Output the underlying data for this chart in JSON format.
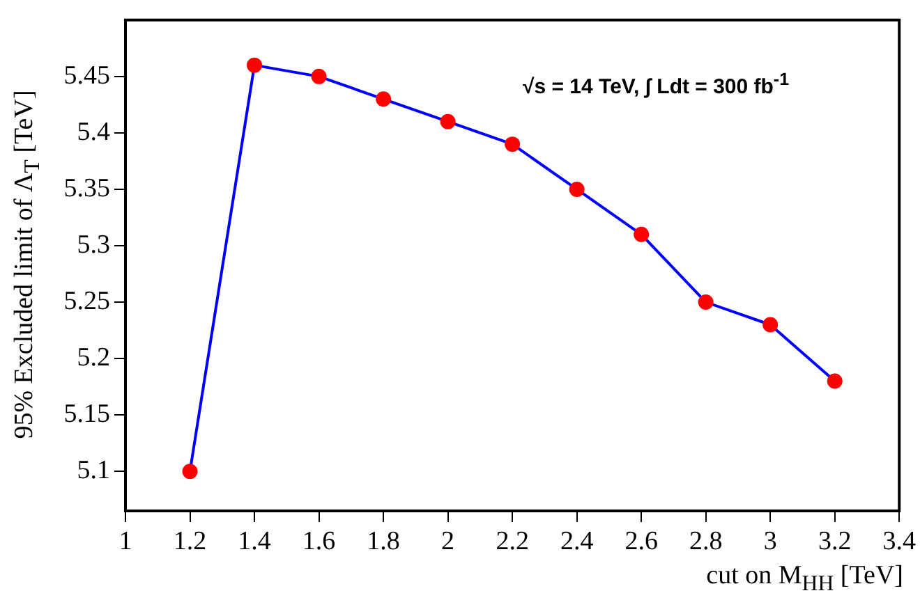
{
  "chart_data": {
    "type": "line",
    "xlabel": "cut on M$_{HH}$ [TeV]",
    "ylabel": "95% Excluded limit of Λ$_{T}$ [TeV]",
    "annotations": [
      "√s = 14 TeV, ∫ Ldt = 300 fb$^{-1}$"
    ],
    "x": [
      1.2,
      1.4,
      1.6,
      1.8,
      2.0,
      2.2,
      2.4,
      2.6,
      2.8,
      3.0,
      3.2
    ],
    "series": [
      {
        "color": "#0000ff",
        "colors": [
          "#ff0000",
          "#ff0000",
          "#ff0000",
          "#ff0000",
          "#ff0000",
          "#ff0000",
          "#ff0000",
          "#ff0000",
          "#ff0000",
          "#ff0000",
          "#ff0000"
        ],
        "values": [
          5.1,
          5.46,
          5.45,
          5.43,
          5.41,
          5.39,
          5.35,
          5.31,
          5.25,
          5.23,
          5.18
        ]
      }
    ],
    "xlim": [
      1,
      3.4
    ],
    "xticks": [
      1,
      1.2,
      1.4,
      1.6,
      1.8,
      2,
      2.2,
      2.4,
      2.6,
      2.8,
      3,
      3.2,
      3.4
    ],
    "ylim": [
      5.065,
      5.5
    ],
    "yticks": [
      5.1,
      5.15,
      5.2,
      5.25,
      5.3,
      5.35,
      5.4,
      5.45
    ],
    "grid": false,
    "marker": "circle",
    "line_style": "solid"
  }
}
